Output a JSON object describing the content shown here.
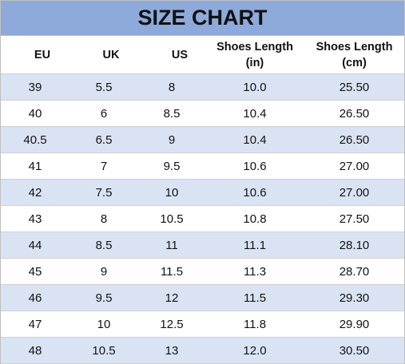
{
  "header": {
    "title": "SIZE CHART"
  },
  "table": {
    "columns": [
      "EU",
      "UK",
      "US",
      "Shoes Length (in)",
      "Shoes Length (cm)"
    ],
    "rows": [
      [
        "39",
        "5.5",
        "8",
        "10.0",
        "25.50"
      ],
      [
        "40",
        "6",
        "8.5",
        "10.4",
        "26.50"
      ],
      [
        "40.5",
        "6.5",
        "9",
        "10.4",
        "26.50"
      ],
      [
        "41",
        "7",
        "9.5",
        "10.6",
        "27.00"
      ],
      [
        "42",
        "7.5",
        "10",
        "10.6",
        "27.00"
      ],
      [
        "43",
        "8",
        "10.5",
        "10.8",
        "27.50"
      ],
      [
        "44",
        "8.5",
        "11",
        "11.1",
        "28.10"
      ],
      [
        "45",
        "9",
        "11.5",
        "11.3",
        "28.70"
      ],
      [
        "46",
        "9.5",
        "12",
        "11.5",
        "29.30"
      ],
      [
        "47",
        "10",
        "12.5",
        "11.8",
        "29.90"
      ],
      [
        "48",
        "10.5",
        "13",
        "12.0",
        "30.50"
      ]
    ]
  }
}
